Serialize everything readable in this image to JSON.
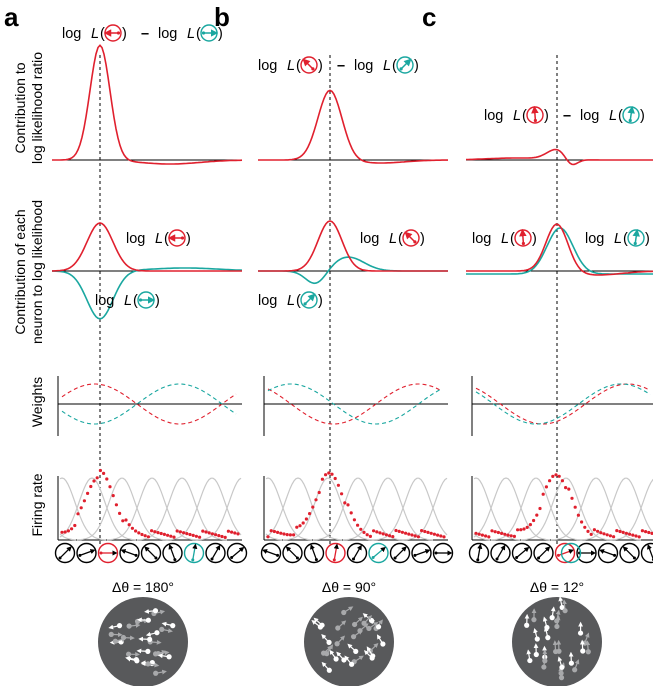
{
  "colors": {
    "red": "#e0202e",
    "teal": "#1aa7a0",
    "gray_tuning": "#c8c8c8",
    "disk": "#58595b",
    "dot_white": "#ffffff",
    "axis": "#000000"
  },
  "y_labels": {
    "row1_line1": "Contribution to",
    "row1_line2": "log likelihood ratio",
    "row2_line1": "Contribution of each",
    "row2_line2": "neuron to log likelihood",
    "row3": "Weights",
    "row4": "Firing rate"
  },
  "panels": [
    {
      "letter": "a",
      "delta_theta": "Δθ = 180°",
      "ratio_label": {
        "pre": "log ",
        "L": "L",
        "minus": "–",
        "pre2": "log "
      },
      "red_label": "log L",
      "teal_label": "log L",
      "red_arrow_deg": 180,
      "teal_arrow_deg": 0,
      "red_neuron_index": 2,
      "teal_neuron_index": 6
    },
    {
      "letter": "b",
      "delta_theta": "Δθ = 90°",
      "ratio_label": {
        "pre": "log ",
        "L": "L",
        "minus": "–",
        "pre2": "log "
      },
      "red_label": "log L",
      "teal_label": "log L",
      "red_arrow_deg": 135,
      "teal_arrow_deg": 45,
      "red_neuron_index": 3,
      "teal_neuron_index": 5
    },
    {
      "letter": "c",
      "delta_theta": "Δθ = 12°",
      "ratio_label": {
        "pre": "log ",
        "L": "L",
        "minus": "–",
        "pre2": "log "
      },
      "red_label": "log L",
      "teal_label": "log L",
      "red_arrow_deg": 94,
      "teal_arrow_deg": 82,
      "red_neuron_index": 4,
      "teal_neuron_index": 4
    }
  ],
  "neuron_icon_count": 9,
  "neuron_icon_angles_deg": [
    45,
    20,
    0,
    160,
    135,
    110,
    80,
    60,
    40
  ]
}
